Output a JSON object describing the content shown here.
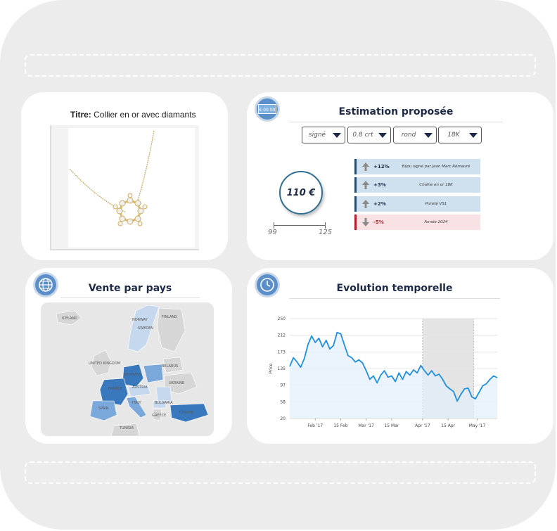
{
  "colors": {
    "background": "#ececec",
    "card": "#ffffff",
    "accent": "#5b8fc9",
    "heading": "#1d2a47",
    "positive_bar": "#cfe0ee",
    "negative_bar": "#f9e2e4",
    "negative_text": "#b51e2a",
    "line": "#1f8fe0",
    "country_highlight": "#3a78bd",
    "country_mid": "#7ba8db",
    "country_light": "#c5d8ee"
  },
  "product": {
    "title_label": "Titre:",
    "title_value": "Collier en or avec diamants",
    "image_icon": "diamond-necklace-image"
  },
  "estimation": {
    "badge_icon": "money-bill-icon",
    "badge_text": "€ 00 00",
    "heading": "Estimation proposée",
    "selects": [
      {
        "value": "signé"
      },
      {
        "value": "0.8 crt"
      },
      {
        "value": "rond"
      },
      {
        "value": "18K"
      }
    ],
    "price": "110 €",
    "range_min": "99",
    "range_max": "125",
    "factors": [
      {
        "direction": "up",
        "percent": "+12%",
        "description": "Bijou signé par Jean Marc Rémauré"
      },
      {
        "direction": "up",
        "percent": "+3%",
        "description": "Chaîne en or 18K"
      },
      {
        "direction": "up",
        "percent": "+2%",
        "description": "Pureté VS1"
      },
      {
        "direction": "down",
        "percent": "-5%",
        "description": "Année 2024"
      }
    ]
  },
  "country": {
    "badge_icon": "globe-icon",
    "heading": "Vente par pays",
    "map_labels": [
      "ICELAND",
      "NORWAY",
      "SWEDEN",
      "FINLAND",
      "UNITED KINGDOM",
      "GERMANY",
      "BELARUS",
      "FRANCE",
      "AUSTRIA",
      "UKRAINE",
      "SPAIN",
      "ITALY",
      "BULGARIA",
      "TÜRKIYE",
      "GREECE",
      "TUNISIA"
    ]
  },
  "time": {
    "badge_icon": "clock-icon",
    "heading": "Evolution temporelle"
  },
  "chart_data": {
    "type": "line",
    "title": "Evolution temporelle",
    "xlabel": "",
    "ylabel": "Price",
    "ylim": [
      20,
      250
    ],
    "yticks": [
      20,
      58,
      97,
      135,
      173,
      212,
      250
    ],
    "xtick_labels": [
      "Feb '17",
      "15 Feb",
      "Mar '17",
      "15 Mar",
      "Apr '17",
      "15 Apr",
      "May '17"
    ],
    "xtick_days": [
      31,
      45,
      59,
      73,
      90,
      104,
      120
    ],
    "x_range_days": [
      17,
      131
    ],
    "highlight_band_days": [
      90,
      118
    ],
    "grid": true,
    "series": [
      {
        "name": "",
        "days": [
          17,
          19,
          21,
          23,
          25,
          27,
          29,
          31,
          33,
          35,
          37,
          39,
          41,
          43,
          45,
          47,
          49,
          51,
          53,
          55,
          57,
          59,
          61,
          63,
          65,
          67,
          69,
          71,
          73,
          75,
          77,
          79,
          81,
          83,
          85,
          87,
          89,
          91,
          93,
          95,
          97,
          99,
          101,
          103,
          105,
          107,
          109,
          111,
          113,
          115,
          117,
          119,
          121,
          123,
          125,
          127,
          129,
          131
        ],
        "values": [
          140,
          160,
          150,
          138,
          158,
          190,
          210,
          195,
          205,
          185,
          200,
          180,
          188,
          218,
          215,
          190,
          165,
          160,
          150,
          155,
          148,
          130,
          110,
          118,
          102,
          120,
          130,
          115,
          118,
          105,
          125,
          110,
          128,
          120,
          132,
          125,
          142,
          130,
          120,
          130,
          118,
          122,
          110,
          95,
          88,
          82,
          60,
          75,
          88,
          90,
          70,
          65,
          80,
          95,
          100,
          110,
          118,
          114
        ]
      }
    ]
  }
}
